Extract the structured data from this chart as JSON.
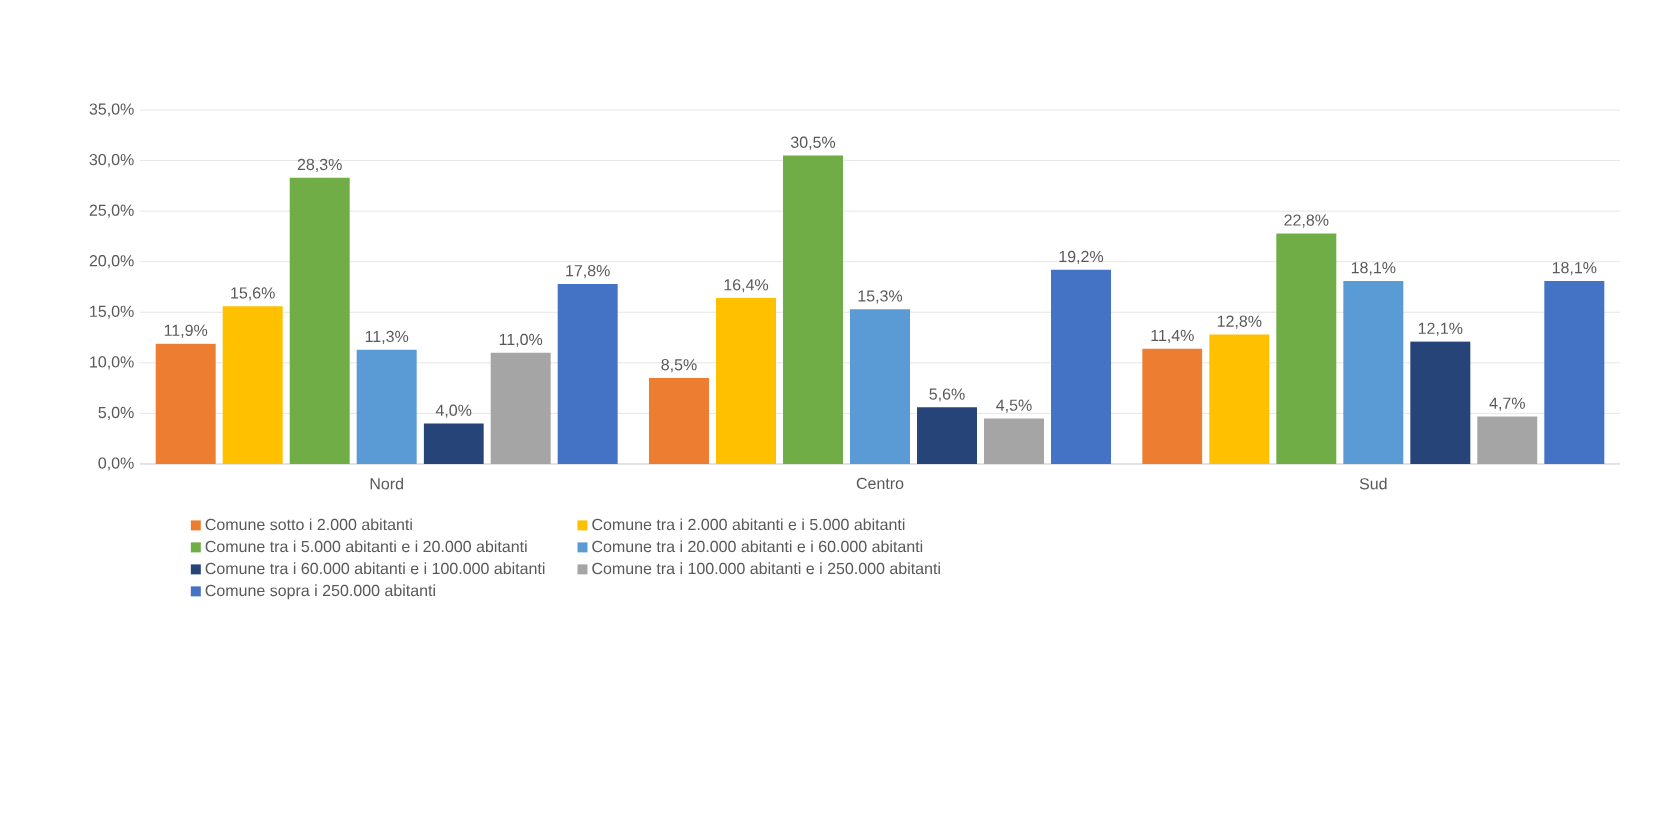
{
  "chart_data": {
    "type": "bar",
    "categories": [
      "Nord",
      "Centro",
      "Sud"
    ],
    "ylim": [
      0,
      35
    ],
    "yticks": [
      {
        "value": 0,
        "label": "0,0%"
      },
      {
        "value": 5,
        "label": "5,0%"
      },
      {
        "value": 10,
        "label": "10,0%"
      },
      {
        "value": 15,
        "label": "15,0%"
      },
      {
        "value": 20,
        "label": "20,0%"
      },
      {
        "value": 25,
        "label": "25,0%"
      },
      {
        "value": 30,
        "label": "30,0%"
      },
      {
        "value": 35,
        "label": "35,0%"
      }
    ],
    "grid": "y",
    "legend": "bottom",
    "series": [
      {
        "name": "Comune sotto i 2.000 abitanti",
        "color": "#ed7d31",
        "values": [
          11.9,
          8.5,
          11.4
        ],
        "value_labels": [
          "11,9%",
          "8,5%",
          "11,4%"
        ]
      },
      {
        "name": "Comune tra i 2.000 abitanti e i 5.000 abitanti",
        "color": "#ffc000",
        "values": [
          15.6,
          16.4,
          12.8
        ],
        "value_labels": [
          "15,6%",
          "16,4%",
          "12,8%"
        ]
      },
      {
        "name": "Comune tra i 5.000 abitanti e i 20.000 abitanti",
        "color": "#70ad47",
        "values": [
          28.3,
          30.5,
          22.8
        ],
        "value_labels": [
          "28,3%",
          "30,5%",
          "22,8%"
        ]
      },
      {
        "name": "Comune tra i 20.000 abitanti e i 60.000 abitanti",
        "color": "#5b9bd5",
        "values": [
          11.3,
          15.3,
          18.1
        ],
        "value_labels": [
          "11,3%",
          "15,3%",
          "18,1%"
        ]
      },
      {
        "name": "Comune tra i 60.000 abitanti e i 100.000 abitanti",
        "color": "#264478",
        "values": [
          4.0,
          5.6,
          12.1
        ],
        "value_labels": [
          "4,0%",
          "5,6%",
          "12,1%"
        ]
      },
      {
        "name": "Comune tra i 100.000 abitanti e i 250.000 abitanti",
        "color": "#a5a5a5",
        "values": [
          11.0,
          4.5,
          4.7
        ],
        "value_labels": [
          "11,0%",
          "4,5%",
          "4,7%"
        ]
      },
      {
        "name": "Comune sopra i 250.000 abitanti",
        "color": "#4472c4",
        "values": [
          17.8,
          19.2,
          18.1
        ],
        "value_labels": [
          "17,8%",
          "19,2%",
          "18,1%"
        ]
      }
    ]
  }
}
